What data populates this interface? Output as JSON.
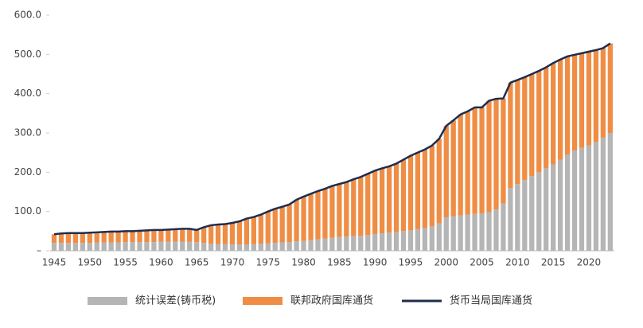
{
  "chart_data": {
    "type": "bar",
    "categories": [
      "1945",
      null,
      null,
      null,
      null,
      "1950",
      null,
      null,
      null,
      null,
      "1955",
      null,
      null,
      null,
      null,
      "1960",
      null,
      null,
      null,
      null,
      "1965",
      null,
      null,
      null,
      null,
      "1970",
      null,
      null,
      null,
      null,
      "1975",
      null,
      null,
      null,
      null,
      "1980",
      null,
      null,
      null,
      null,
      "1985",
      null,
      null,
      null,
      null,
      "1990",
      null,
      null,
      null,
      null,
      "1995",
      null,
      null,
      null,
      null,
      "2000",
      null,
      null,
      null,
      null,
      "2005",
      null,
      null,
      null,
      null,
      "2010",
      null,
      null,
      null,
      null,
      "2015",
      null,
      null,
      null,
      null,
      "2020",
      null,
      null,
      null
    ],
    "series": [
      {
        "name": "统计误差(铸币税)",
        "color": "#b5b5b5",
        "values": [
          20,
          20,
          20,
          20,
          20,
          20,
          21,
          21,
          21,
          21,
          22,
          22,
          22,
          22,
          22,
          23,
          23,
          23,
          23,
          23,
          22,
          20,
          18,
          17,
          17,
          16,
          16,
          16,
          17,
          18,
          19,
          20,
          21,
          22,
          24,
          25,
          27,
          29,
          31,
          33,
          35,
          36,
          37,
          38,
          40,
          42,
          44,
          46,
          48,
          50,
          52,
          55,
          58,
          62,
          70,
          85,
          88,
          90,
          92,
          94,
          95,
          98,
          105,
          120,
          160,
          170,
          180,
          190,
          200,
          210,
          220,
          232,
          245,
          255,
          262,
          268,
          277,
          288,
          300
        ]
      },
      {
        "name": "联邦政府国库通货",
        "color": "#ef8d45",
        "values": [
          22,
          24,
          25,
          25,
          25,
          26,
          26,
          27,
          28,
          28,
          28,
          28,
          29,
          30,
          31,
          30,
          31,
          32,
          33,
          33,
          31,
          40,
          47,
          50,
          51,
          55,
          59,
          66,
          69,
          74,
          81,
          87,
          91,
          96,
          106,
          113,
          118,
          123,
          127,
          132,
          135,
          139,
          145,
          150,
          156,
          162,
          166,
          169,
          174,
          182,
          190,
          195,
          200,
          206,
          215,
          233,
          244,
          257,
          263,
          271,
          270,
          284,
          282,
          268,
          268,
          265,
          262,
          260,
          258,
          257,
          258,
          255,
          250,
          244,
          241,
          239,
          234,
          228,
          228
        ]
      },
      {
        "name": "货币当局国库通货",
        "color": "#1f2d4f",
        "type": "line",
        "values": [
          42,
          44,
          45,
          45,
          45,
          46,
          47,
          48,
          49,
          49,
          50,
          50,
          51,
          52,
          53,
          53,
          54,
          55,
          56,
          56,
          53,
          60,
          65,
          67,
          68,
          71,
          75,
          82,
          86,
          92,
          100,
          107,
          112,
          118,
          130,
          138,
          145,
          152,
          158,
          165,
          170,
          175,
          182,
          188,
          196,
          204,
          210,
          215,
          222,
          232,
          242,
          250,
          258,
          268,
          285,
          318,
          332,
          347,
          355,
          365,
          365,
          382,
          387,
          388,
          428,
          435,
          442,
          450,
          458,
          467,
          478,
          487,
          495,
          499,
          503,
          507,
          511,
          516,
          528
        ]
      }
    ],
    "stacked": true,
    "ylim": [
      0,
      600
    ],
    "yticks": [
      {
        "value": 0,
        "label": "–"
      },
      {
        "value": 100,
        "label": "100.0"
      },
      {
        "value": 200,
        "label": "200.0"
      },
      {
        "value": 300,
        "label": "300.0"
      },
      {
        "value": 400,
        "label": "400.0"
      },
      {
        "value": 500,
        "label": "500.0"
      },
      {
        "value": 600,
        "label": "600.0"
      }
    ],
    "grid": false,
    "legend": "bottom"
  }
}
